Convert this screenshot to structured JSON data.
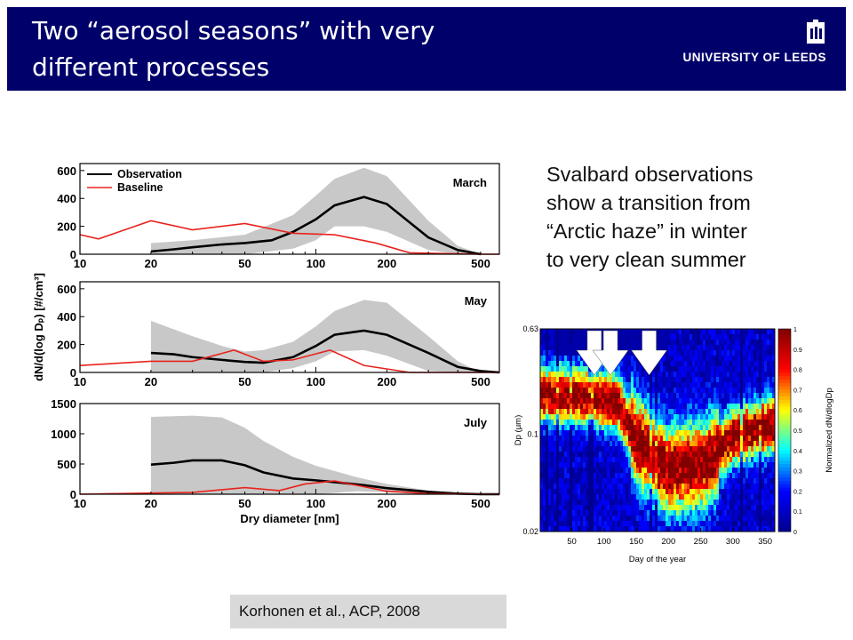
{
  "header": {
    "title_line1": "Two “aerosol seasons” with very",
    "title_line2": "different processes",
    "logo_text": "UNIVERSITY OF LEEDS",
    "background": "#00006b"
  },
  "caption": {
    "lines": [
      "Svalbard observations",
      "show a transition from",
      "“Arctic haze” in winter",
      "to very clean summer"
    ]
  },
  "citation": "Korhonen et al., ACP, 2008",
  "chart_data": [
    {
      "type": "line",
      "layout_group": "size-distributions",
      "panel": "March",
      "x_scale": "log",
      "xlim": [
        10,
        600
      ],
      "ylim": [
        0,
        650
      ],
      "yticks": [
        0,
        200,
        400,
        600
      ],
      "xticks": [
        10,
        20,
        50,
        100,
        200,
        500
      ],
      "legend": [
        "Observation",
        "Baseline"
      ],
      "legend_position": "top-left",
      "series": [
        {
          "name": "Observation",
          "color": "#000000",
          "x": [
            20,
            25,
            30,
            40,
            50,
            65,
            80,
            100,
            120,
            160,
            200,
            300,
            400,
            500
          ],
          "values": [
            20,
            35,
            50,
            70,
            80,
            100,
            160,
            250,
            350,
            410,
            360,
            120,
            30,
            0
          ]
        },
        {
          "name": "Baseline",
          "color": "#e8231e",
          "x": [
            10,
            12,
            20,
            30,
            50,
            80,
            120,
            180,
            250,
            500,
            600
          ],
          "values": [
            140,
            110,
            240,
            175,
            220,
            150,
            140,
            80,
            10,
            0,
            0
          ]
        }
      ],
      "range_band": {
        "color": "#c8c8c8",
        "x": [
          20,
          30,
          50,
          80,
          100,
          120,
          160,
          200,
          300,
          400,
          500
        ],
        "lower": [
          0,
          0,
          0,
          40,
          100,
          200,
          200,
          160,
          30,
          0,
          0
        ],
        "upper": [
          80,
          100,
          140,
          280,
          420,
          540,
          620,
          560,
          240,
          60,
          0
        ]
      }
    },
    {
      "type": "line",
      "layout_group": "size-distributions",
      "panel": "May",
      "x_scale": "log",
      "xlim": [
        10,
        600
      ],
      "ylim": [
        0,
        650
      ],
      "yticks": [
        0,
        200,
        400,
        600
      ],
      "xticks": [
        10,
        20,
        50,
        100,
        200,
        500
      ],
      "ylabel": "dN/d(log Dₚ) [#/cm³]",
      "series": [
        {
          "name": "Observation",
          "color": "#000000",
          "x": [
            20,
            25,
            30,
            40,
            50,
            60,
            80,
            100,
            120,
            160,
            200,
            300,
            400,
            500,
            600
          ],
          "values": [
            140,
            130,
            110,
            90,
            75,
            70,
            110,
            190,
            270,
            300,
            270,
            140,
            40,
            10,
            0
          ]
        },
        {
          "name": "Baseline",
          "color": "#e8231e",
          "x": [
            10,
            20,
            30,
            45,
            60,
            80,
            115,
            160,
            250,
            600
          ],
          "values": [
            50,
            80,
            80,
            160,
            80,
            90,
            160,
            50,
            0,
            0
          ]
        }
      ],
      "range_band": {
        "color": "#c8c8c8",
        "x": [
          20,
          30,
          40,
          50,
          60,
          80,
          100,
          120,
          160,
          200,
          300,
          400,
          500
        ],
        "lower": [
          0,
          0,
          0,
          0,
          0,
          30,
          80,
          150,
          160,
          120,
          10,
          0,
          0
        ],
        "upper": [
          370,
          260,
          190,
          150,
          160,
          220,
          330,
          440,
          520,
          500,
          260,
          80,
          0
        ]
      }
    },
    {
      "type": "line",
      "layout_group": "size-distributions",
      "panel": "July",
      "x_scale": "log",
      "xlim": [
        10,
        600
      ],
      "ylim": [
        0,
        1500
      ],
      "yticks": [
        0,
        500,
        1000,
        1500
      ],
      "xticks": [
        10,
        20,
        50,
        100,
        200,
        500
      ],
      "xlabel": "Dry diameter [nm]",
      "series": [
        {
          "name": "Observation",
          "color": "#000000",
          "x": [
            20,
            25,
            30,
            40,
            50,
            60,
            80,
            100,
            120,
            160,
            200,
            300,
            400,
            500,
            600
          ],
          "values": [
            490,
            520,
            560,
            560,
            480,
            360,
            260,
            230,
            200,
            150,
            100,
            40,
            10,
            0,
            0
          ]
        },
        {
          "name": "Baseline",
          "color": "#e8231e",
          "x": [
            10,
            20,
            30,
            50,
            70,
            90,
            120,
            200,
            300,
            600
          ],
          "values": [
            0,
            20,
            30,
            110,
            60,
            170,
            220,
            50,
            10,
            0
          ]
        }
      ],
      "range_band": {
        "color": "#c8c8c8",
        "x": [
          20,
          30,
          40,
          50,
          60,
          80,
          100,
          150,
          200,
          300,
          400
        ],
        "lower": [
          0,
          0,
          0,
          0,
          0,
          0,
          0,
          50,
          30,
          0,
          0
        ],
        "upper": [
          1280,
          1300,
          1270,
          1100,
          880,
          620,
          470,
          280,
          170,
          60,
          0
        ]
      }
    },
    {
      "type": "heatmap",
      "layout_group": "heatmap",
      "xlabel": "Day of the year",
      "ylabel": "Dp (μm)",
      "colorbar_label": "Normalized dN/dlogDp",
      "xticks": [
        50,
        100,
        150,
        200,
        250,
        300,
        350
      ],
      "xlim": [
        1,
        365
      ],
      "yticks": [
        "0.02",
        "0.1",
        "0.63"
      ],
      "colorbar_ticks": [
        "0",
        "0.1",
        "0.2",
        "0.3",
        "0.4",
        "0.5",
        "0.6",
        "0.7",
        "0.8",
        "0.9",
        "1"
      ],
      "colormap": [
        "#00008f",
        "#0000ff",
        "#00ffff",
        "#ffff00",
        "#ff0000",
        "#800000"
      ],
      "arrow_days": [
        85,
        110,
        170
      ],
      "ridge": {
        "days": [
          1,
          60,
          120,
          150,
          200,
          260,
          300,
          365
        ],
        "dp_fraction_from_top": [
          0.32,
          0.33,
          0.36,
          0.55,
          0.7,
          0.66,
          0.53,
          0.47
        ]
      }
    }
  ]
}
